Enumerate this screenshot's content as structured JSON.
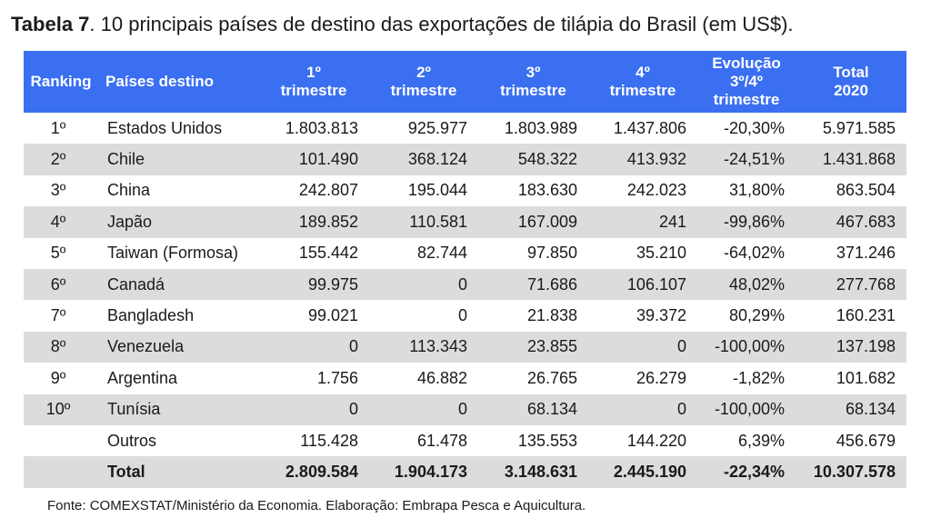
{
  "title": {
    "bold": "Tabela 7",
    "rest": ". 10 principais países de destino das exportações de tilápia do Brasil (em US$)."
  },
  "headers": {
    "ranking": "Ranking",
    "country": "Países destino",
    "q1": [
      "1º",
      "trimestre"
    ],
    "q2": [
      "2º",
      "trimestre"
    ],
    "q3": [
      "3º",
      "trimestre"
    ],
    "q4": [
      "4º",
      "trimestre"
    ],
    "evolution": [
      "Evolução",
      "3º/4º",
      "trimestre"
    ],
    "total": [
      "Total",
      "2020"
    ]
  },
  "rows": [
    {
      "rank": "1º",
      "country": "Estados Unidos",
      "q1": "1.803.813",
      "q2": "925.977",
      "q3": "1.803.989",
      "q4": "1.437.806",
      "evo": "-20,30%",
      "total": "5.971.585"
    },
    {
      "rank": "2º",
      "country": "Chile",
      "q1": "101.490",
      "q2": "368.124",
      "q3": "548.322",
      "q4": "413.932",
      "evo": "-24,51%",
      "total": "1.431.868"
    },
    {
      "rank": "3º",
      "country": "China",
      "q1": "242.807",
      "q2": "195.044",
      "q3": "183.630",
      "q4": "242.023",
      "evo": "31,80%",
      "total": "863.504"
    },
    {
      "rank": "4º",
      "country": "Japão",
      "q1": "189.852",
      "q2": "110.581",
      "q3": "167.009",
      "q4": "241",
      "evo": "-99,86%",
      "total": "467.683"
    },
    {
      "rank": "5º",
      "country": "Taiwan (Formosa)",
      "q1": "155.442",
      "q2": "82.744",
      "q3": "97.850",
      "q4": "35.210",
      "evo": "-64,02%",
      "total": "371.246"
    },
    {
      "rank": "6º",
      "country": "Canadá",
      "q1": "99.975",
      "q2": "0",
      "q3": "71.686",
      "q4": "106.107",
      "evo": "48,02%",
      "total": "277.768"
    },
    {
      "rank": "7º",
      "country": "Bangladesh",
      "q1": "99.021",
      "q2": "0",
      "q3": "21.838",
      "q4": "39.372",
      "evo": "80,29%",
      "total": "160.231"
    },
    {
      "rank": "8º",
      "country": "Venezuela",
      "q1": "0",
      "q2": "113.343",
      "q3": "23.855",
      "q4": "0",
      "evo": "-100,00%",
      "total": "137.198"
    },
    {
      "rank": "9º",
      "country": "Argentina",
      "q1": "1.756",
      "q2": "46.882",
      "q3": "26.765",
      "q4": "26.279",
      "evo": "-1,82%",
      "total": "101.682"
    },
    {
      "rank": "10º",
      "country": "Tunísia",
      "q1": "0",
      "q2": "0",
      "q3": "68.134",
      "q4": "0",
      "evo": "-100,00%",
      "total": "68.134"
    },
    {
      "rank": "",
      "country": "Outros",
      "q1": "115.428",
      "q2": "61.478",
      "q3": "135.553",
      "q4": "144.220",
      "evo": "6,39%",
      "total": "456.679"
    }
  ],
  "total_row": {
    "rank": "",
    "country": "Total",
    "q1": "2.809.584",
    "q2": "1.904.173",
    "q3": "3.148.631",
    "q4": "2.445.190",
    "evo": "-22,34%",
    "total": "10.307.578"
  },
  "footer": "Fonte: COMEXSTAT/Ministério da Economia. Elaboração: Embrapa Pesca e Aquicultura.",
  "colors": {
    "header_bg": "#3a6ff2",
    "stripe": "#dcdcdc"
  }
}
